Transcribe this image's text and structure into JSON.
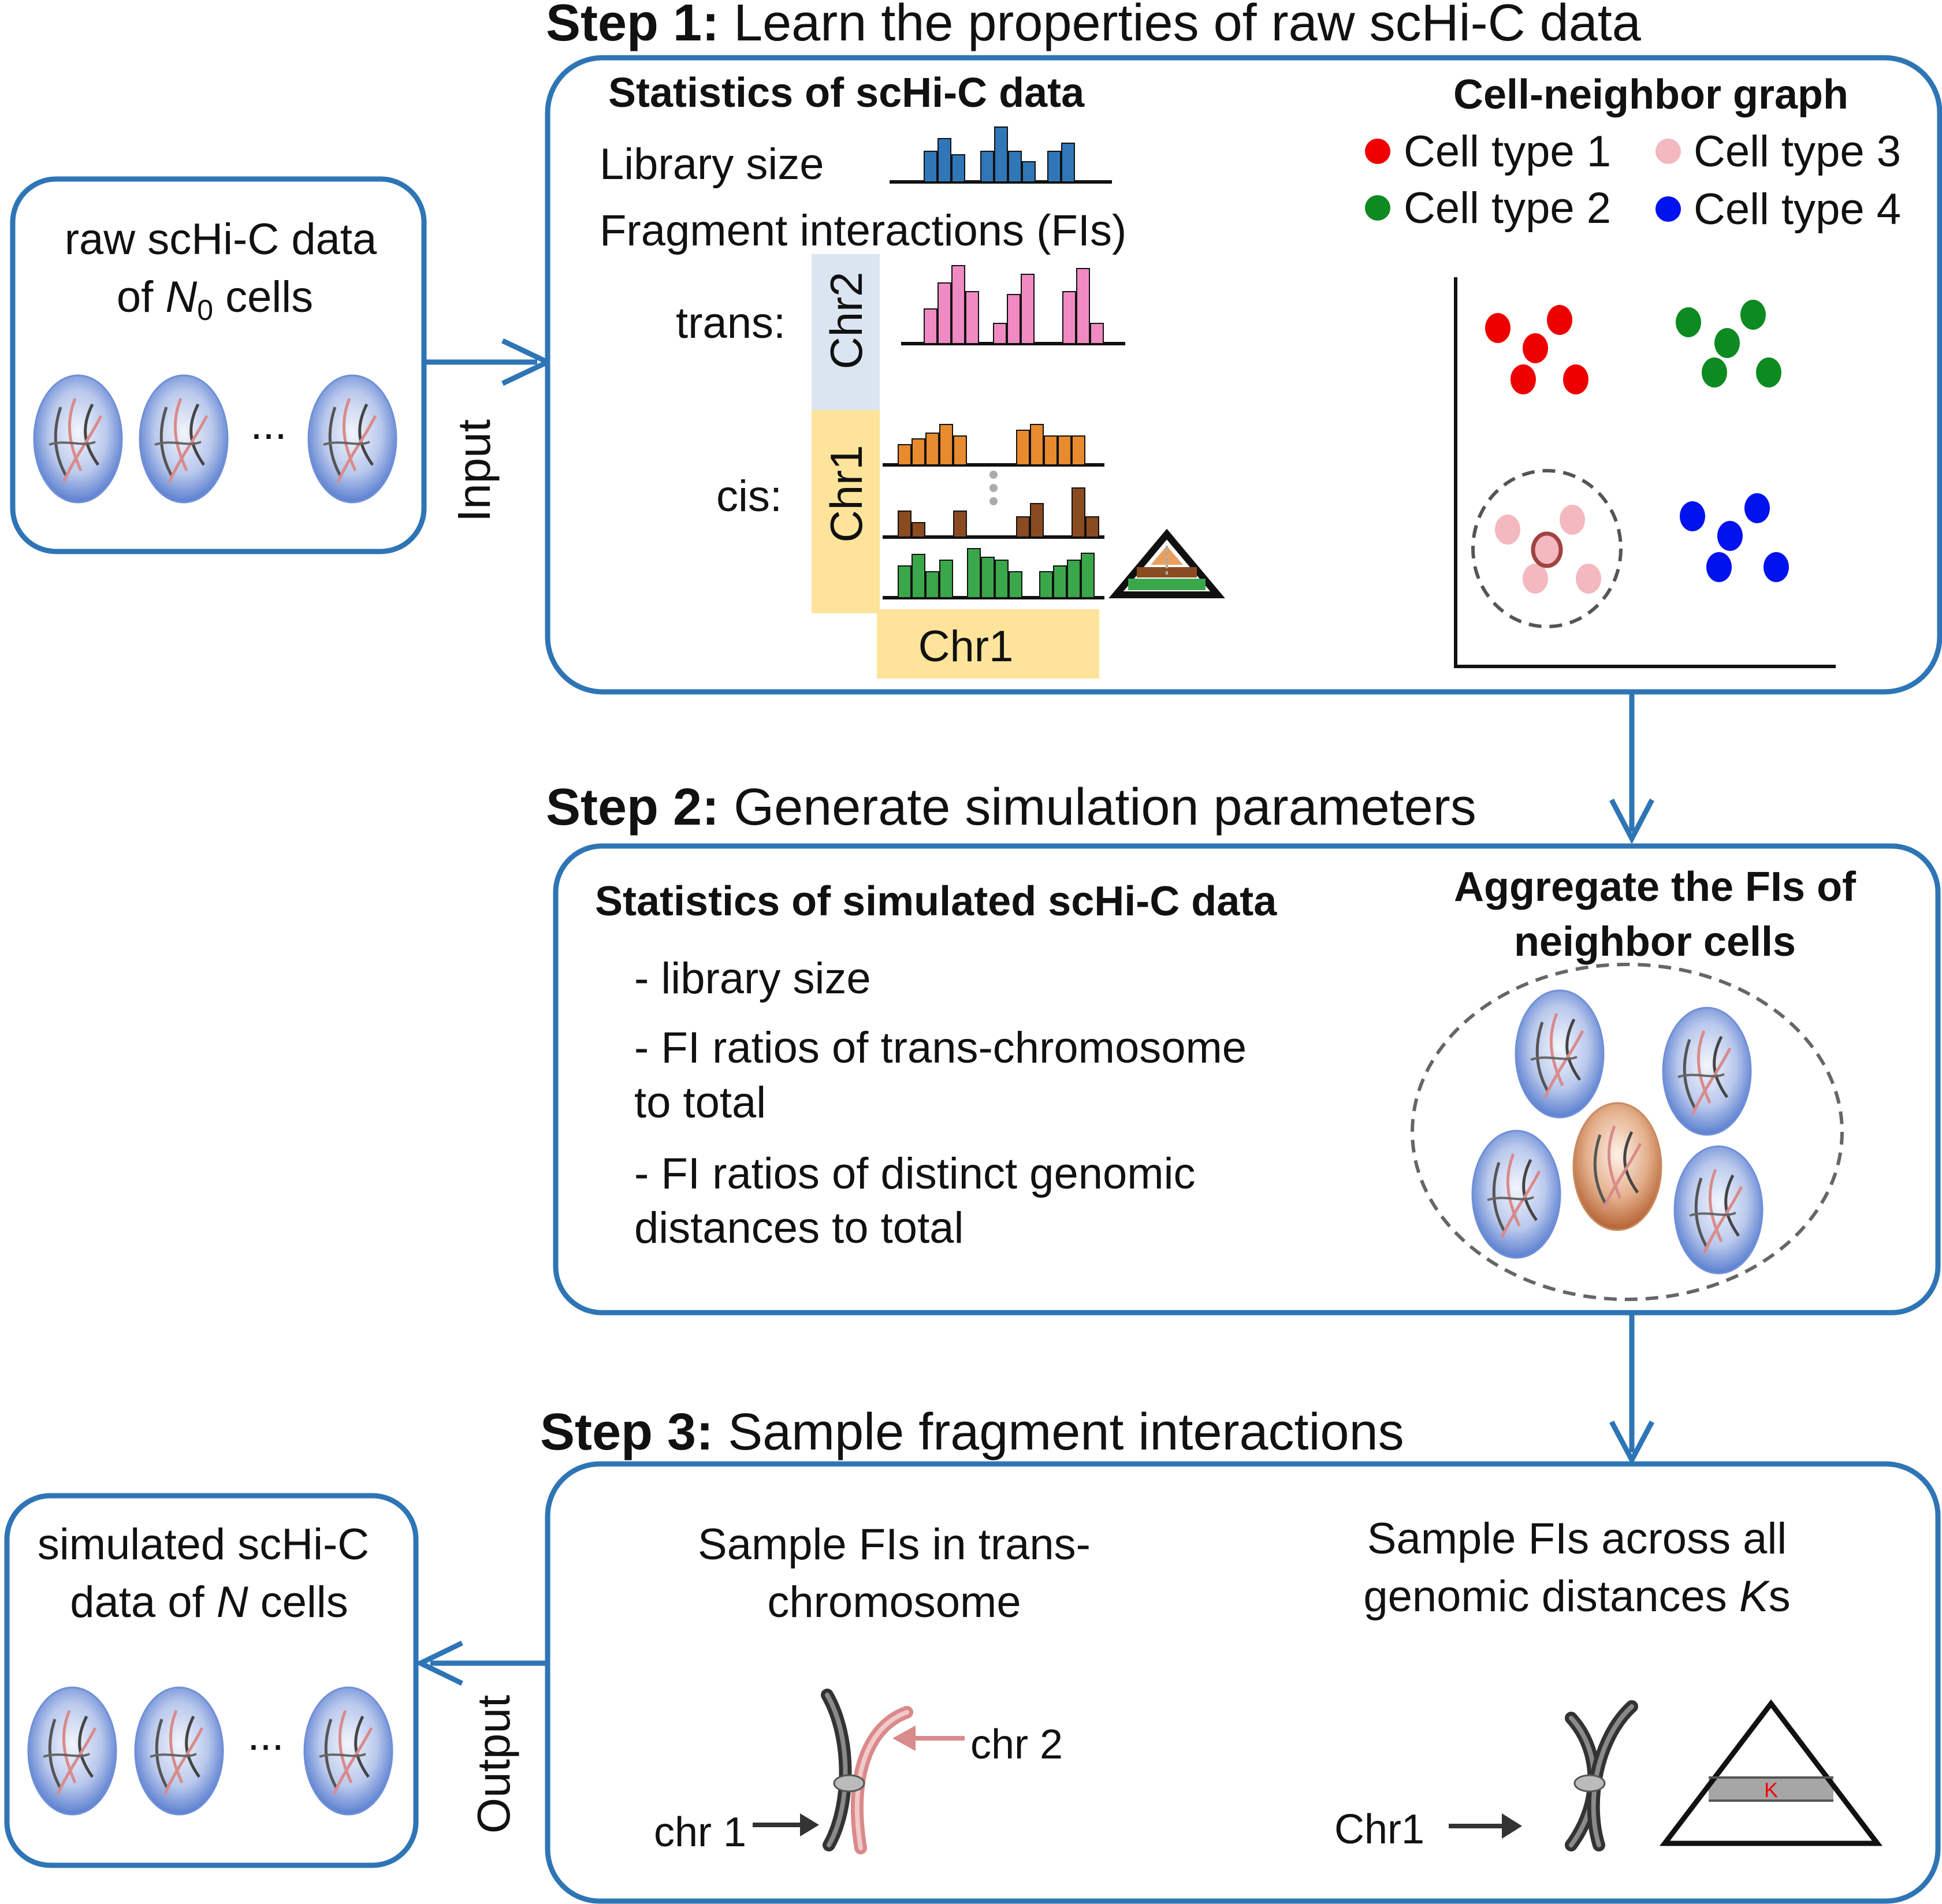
{
  "colors": {
    "accent": "#2e75b6",
    "cell_blue": "#5b7fd0",
    "cell_orange": "#b8683a",
    "library_bars": "#2f77b7",
    "trans_bars": "#f08ac2",
    "cis_orange": "#e88a2e",
    "cis_brown": "#8a4b20",
    "cis_green": "#3aa74a",
    "chr_blue_bg": "#dbe5f1",
    "chr_yellow_bg": "#fde49a",
    "type1": "#ee0000",
    "type2": "#0d8a20",
    "type3": "#f4b8c0",
    "type4": "#0012ee",
    "chr2_pink": "#d98a8a",
    "k_band": "#a6a6a6",
    "k_text": "#ee0000"
  },
  "input_box": {
    "line1": "raw scHi-C data",
    "line2_prefix": "of ",
    "line2_var": "N",
    "line2_sub": "0",
    "line2_suffix": " cells",
    "ellipsis": "..."
  },
  "arrows": {
    "input_label": "Input",
    "output_label": "Output"
  },
  "step1": {
    "title_bold": "Step 1:",
    "title_rest": " Learn the properties of raw scHi-C data",
    "stats_heading": "Statistics of scHi-C data",
    "library_size": "Library size",
    "fragment_interactions": "Fragment  interactions (FIs)",
    "trans_label": "trans:",
    "cis_label": "cis:",
    "chr2_vertical": "Chr2",
    "chr1_vertical": "Chr1",
    "chr1_horizontal": "Chr1",
    "graph_heading": "Cell-neighbor graph",
    "legend": [
      {
        "label": "Cell type 1",
        "color": "#ee0000"
      },
      {
        "label": "Cell type 2",
        "color": "#0d8a20"
      },
      {
        "label": "Cell type 3",
        "color": "#f4b8c0"
      },
      {
        "label": "Cell type 4",
        "color": "#0012ee"
      }
    ]
  },
  "step2": {
    "title_bold": "Step 2:",
    "title_rest": " Generate simulation parameters",
    "heading": "Statistics of simulated scHi-C data",
    "items": [
      [
        "- library size"
      ],
      [
        "- FI ratios of trans-chromosome",
        "to total"
      ],
      [
        "- FI ratios of distinct genomic",
        "distances  to total"
      ]
    ],
    "aggregate_heading_line1": "Aggregate the FIs of",
    "aggregate_heading_line2": "neighbor cells"
  },
  "step3": {
    "title_bold": "Step 3:",
    "title_rest": " Sample fragment interactions",
    "left_caption_line1": "Sample FIs in trans-",
    "left_caption_line2": "chromosome",
    "right_caption_line1": "Sample FIs across all",
    "right_caption_line2_prefix": "genomic distances ",
    "right_caption_line2_var": "K",
    "right_caption_line2_suffix": "s",
    "chr1_label": "chr 1",
    "chr2_label": "chr 2",
    "chr1_label_right": "Chr1",
    "k_label": "K"
  },
  "output_box": {
    "line1": "simulated scHi-C",
    "line2_prefix": "data of ",
    "line2_var": "N",
    "line2_suffix": " cells",
    "ellipsis": "..."
  }
}
